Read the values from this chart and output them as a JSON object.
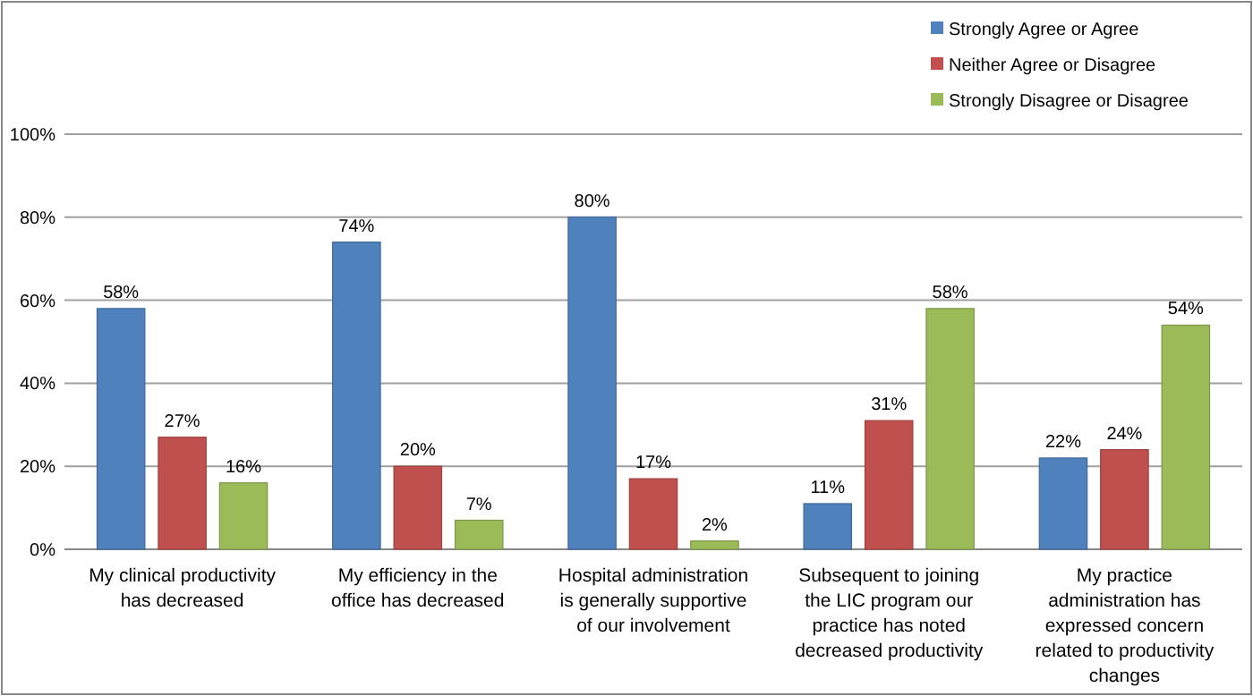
{
  "chart_data": {
    "type": "bar",
    "categories": [
      "My clinical productivity has decreased",
      "My efficiency in the office has decreased",
      "Hospital administration is generally supportive of our involvement",
      "Subsequent to joining the LIC program our practice has noted decreased productivity",
      "My practice administration has expressed concern related to productivity changes"
    ],
    "series": [
      {
        "name": "Strongly Agree or Agree",
        "color": "#4f81bd",
        "values": [
          58,
          74,
          80,
          11,
          22
        ],
        "value_labels": [
          "58%",
          "74%",
          "80%",
          "11%",
          "22%"
        ]
      },
      {
        "name": "Neither Agree or Disagree",
        "color": "#c0504d",
        "values": [
          27,
          20,
          17,
          31,
          24
        ],
        "value_labels": [
          "27%",
          "20%",
          "17%",
          "31%",
          "24%"
        ]
      },
      {
        "name": "Strongly Disagree or Disagree",
        "color": "#9bbb59",
        "values": [
          16,
          7,
          2,
          58,
          54
        ],
        "value_labels": [
          "16%",
          "7%",
          "2%",
          "58%",
          "54%"
        ]
      }
    ],
    "ylim": [
      0,
      100
    ],
    "yticks": [
      {
        "value": 0,
        "label": "0%"
      },
      {
        "value": 20,
        "label": "20%"
      },
      {
        "value": 40,
        "label": "40%"
      },
      {
        "value": 60,
        "label": "60%"
      },
      {
        "value": 80,
        "label": "80%"
      },
      {
        "value": 100,
        "label": "100%"
      }
    ],
    "grid": "y",
    "legend": "top right"
  }
}
